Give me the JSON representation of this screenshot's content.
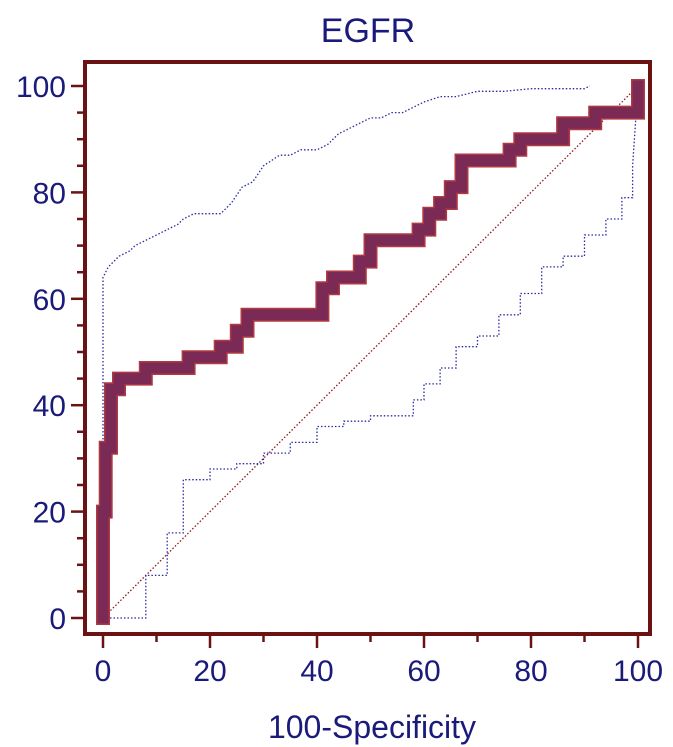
{
  "chart_data": {
    "type": "line",
    "title": "EGFR",
    "xlabel": "100-Specificity",
    "ylabel": "",
    "xlim": [
      0,
      100
    ],
    "ylim": [
      0,
      100
    ],
    "xticks": [
      "0",
      "20",
      "40",
      "60",
      "80",
      "100"
    ],
    "yticks": [
      "0",
      "20",
      "40",
      "60",
      "80",
      "100"
    ],
    "grid": false,
    "colors": {
      "frame": "#6b1212",
      "text": "#1a1a7a",
      "roc": "#7a2a55",
      "roc_edge": "#b03a40",
      "ci": "#2a2aa0",
      "diagonal": "#8b1a1a"
    },
    "series": [
      {
        "role": "roc",
        "x": [
          0,
          0,
          0.5,
          0.5,
          1.5,
          1.5,
          3,
          3,
          8,
          8,
          16,
          16,
          22,
          22,
          25,
          25,
          27,
          27,
          41,
          41,
          43,
          43,
          48,
          48,
          50,
          50,
          59,
          59,
          61,
          61,
          63,
          63,
          65,
          65,
          67,
          67,
          76,
          76,
          78,
          78,
          86,
          86,
          92,
          92,
          100,
          100
        ],
        "y": [
          0,
          20,
          20,
          32,
          32,
          43,
          43,
          45,
          45,
          47,
          47,
          49,
          49,
          51,
          51,
          54,
          54,
          57,
          57,
          62,
          62,
          64,
          64,
          67,
          67,
          71,
          71,
          73,
          73,
          76,
          76,
          78,
          78,
          81,
          81,
          86,
          86,
          88,
          88,
          90,
          90,
          93,
          93,
          95,
          95,
          100
        ]
      },
      {
        "role": "ci_upper",
        "x": [
          0,
          0,
          1,
          2,
          3,
          5,
          6,
          8,
          10,
          12,
          14,
          15,
          17,
          20,
          22,
          24,
          26,
          28,
          30,
          33,
          35,
          37,
          40,
          42,
          44,
          46,
          48,
          50,
          52,
          54,
          56,
          58,
          60,
          63,
          66,
          70,
          75,
          80,
          85,
          90,
          91
        ],
        "y": [
          0,
          64,
          66,
          67,
          68,
          69,
          70,
          71,
          72,
          73,
          74,
          75,
          76,
          76,
          76,
          78,
          81,
          82,
          85,
          87,
          87,
          88,
          88,
          89,
          91,
          92,
          93,
          94,
          94,
          95,
          95,
          96,
          97,
          98,
          98,
          99,
          99,
          99.5,
          99.5,
          99.5,
          100
        ]
      },
      {
        "role": "ci_lower",
        "x": [
          0,
          8,
          8,
          12,
          12,
          15,
          15,
          20,
          20,
          25,
          25,
          30,
          30,
          35,
          35,
          40,
          40,
          45,
          45,
          50,
          50,
          58,
          58,
          60,
          60,
          63,
          63,
          66,
          66,
          70,
          70,
          74,
          74,
          78,
          78,
          82,
          82,
          86,
          86,
          90,
          90,
          94,
          94,
          97,
          97,
          99,
          99,
          100
        ],
        "y": [
          0,
          0,
          8,
          8,
          16,
          16,
          26,
          26,
          28,
          28,
          29,
          29,
          31,
          31,
          33,
          33,
          36,
          36,
          37,
          37,
          38,
          38,
          41,
          41,
          44,
          44,
          47,
          47,
          51,
          51,
          53,
          53,
          57,
          57,
          61,
          61,
          66,
          66,
          68,
          68,
          72,
          72,
          75,
          75,
          79,
          79,
          85,
          100
        ]
      },
      {
        "role": "reference",
        "x": [
          0,
          100
        ],
        "y": [
          0,
          100
        ]
      }
    ]
  }
}
